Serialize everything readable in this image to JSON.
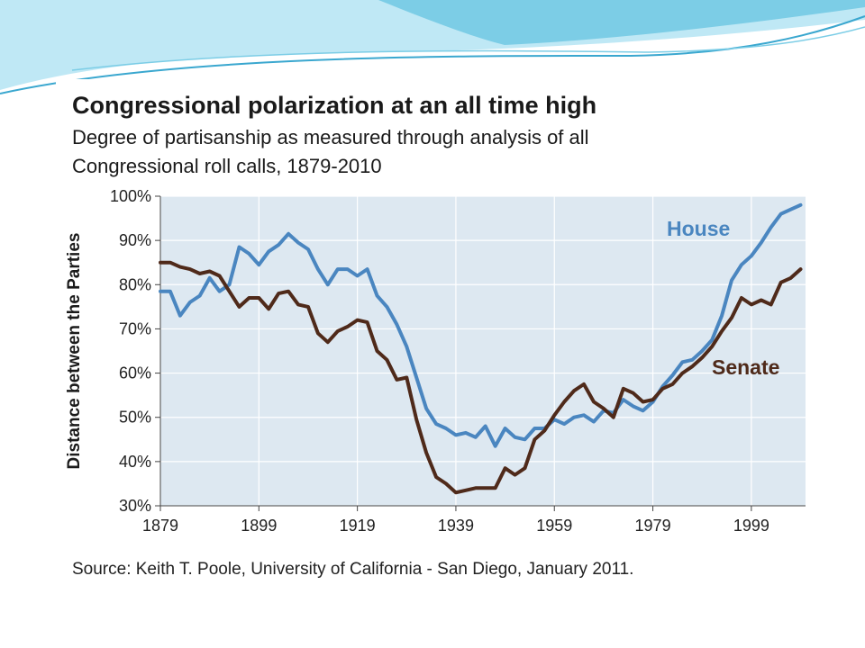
{
  "slide": {
    "colors": {
      "wave_light": "#bfe8f5",
      "wave_mid": "#7ccde6",
      "wave_dark": "#3aa7cf"
    }
  },
  "chart_data": {
    "type": "line",
    "title": "Congressional polarization at an all time high",
    "subtitle_line1": "Degree of partisanship as measured through analysis of all",
    "subtitle_line2": "Congressional roll calls, 1879-2010",
    "ylabel": "Distance between the Parties",
    "xlabel": "",
    "source": "Source: Keith T. Poole, University of California - San Diego, January 2011.",
    "xlim": [
      1879,
      2010
    ],
    "ylim": [
      30,
      100
    ],
    "x_ticks": [
      1879,
      1899,
      1919,
      1939,
      1959,
      1979,
      1999
    ],
    "x_tick_labels": [
      "1879",
      "1899",
      "1919",
      "1939",
      "1959",
      "1979",
      "1999"
    ],
    "y_ticks": [
      30,
      40,
      50,
      60,
      70,
      80,
      90,
      100
    ],
    "y_tick_labels": [
      "30%",
      "40%",
      "50%",
      "60%",
      "70%",
      "80%",
      "90%",
      "100%"
    ],
    "grid": true,
    "plot_background": "#dde8f1",
    "grid_color": "#ffffff",
    "series": [
      {
        "name": "House",
        "color": "#4a86c0",
        "points": [
          [
            1879,
            78.5
          ],
          [
            1881,
            78.5
          ],
          [
            1883,
            73
          ],
          [
            1885,
            76
          ],
          [
            1887,
            77.5
          ],
          [
            1889,
            81.5
          ],
          [
            1891,
            78.5
          ],
          [
            1893,
            80
          ],
          [
            1895,
            88.5
          ],
          [
            1897,
            87
          ],
          [
            1899,
            84.5
          ],
          [
            1901,
            87.5
          ],
          [
            1903,
            89
          ],
          [
            1905,
            91.5
          ],
          [
            1907,
            89.5
          ],
          [
            1909,
            88
          ],
          [
            1911,
            83.5
          ],
          [
            1913,
            80
          ],
          [
            1915,
            83.5
          ],
          [
            1917,
            83.5
          ],
          [
            1919,
            82
          ],
          [
            1921,
            83.5
          ],
          [
            1923,
            77.5
          ],
          [
            1925,
            75
          ],
          [
            1927,
            71
          ],
          [
            1929,
            66
          ],
          [
            1931,
            59
          ],
          [
            1933,
            52
          ],
          [
            1935,
            48.5
          ],
          [
            1937,
            47.5
          ],
          [
            1939,
            46
          ],
          [
            1941,
            46.5
          ],
          [
            1943,
            45.5
          ],
          [
            1945,
            48
          ],
          [
            1947,
            43.5
          ],
          [
            1949,
            47.5
          ],
          [
            1951,
            45.5
          ],
          [
            1953,
            45
          ],
          [
            1955,
            47.5
          ],
          [
            1957,
            47.5
          ],
          [
            1959,
            49.5
          ],
          [
            1961,
            48.5
          ],
          [
            1963,
            50
          ],
          [
            1965,
            50.5
          ],
          [
            1967,
            49
          ],
          [
            1969,
            51.5
          ],
          [
            1971,
            51
          ],
          [
            1973,
            54
          ],
          [
            1975,
            52.5
          ],
          [
            1977,
            51.5
          ],
          [
            1979,
            53.5
          ],
          [
            1981,
            57
          ],
          [
            1983,
            59.5
          ],
          [
            1985,
            62.5
          ],
          [
            1987,
            63
          ],
          [
            1989,
            65
          ],
          [
            1991,
            67.5
          ],
          [
            1993,
            73
          ],
          [
            1995,
            81
          ],
          [
            1997,
            84.5
          ],
          [
            1999,
            86.5
          ],
          [
            2001,
            89.5
          ],
          [
            2003,
            93
          ],
          [
            2005,
            96
          ],
          [
            2007,
            97
          ],
          [
            2009,
            98
          ]
        ]
      },
      {
        "name": "Senate",
        "color": "#4f2a1a",
        "points": [
          [
            1879,
            85
          ],
          [
            1881,
            85
          ],
          [
            1883,
            84
          ],
          [
            1885,
            83.5
          ],
          [
            1887,
            82.5
          ],
          [
            1889,
            83
          ],
          [
            1891,
            82
          ],
          [
            1893,
            78.5
          ],
          [
            1895,
            75
          ],
          [
            1897,
            77
          ],
          [
            1899,
            77
          ],
          [
            1901,
            74.5
          ],
          [
            1903,
            78
          ],
          [
            1905,
            78.5
          ],
          [
            1907,
            75.5
          ],
          [
            1909,
            75
          ],
          [
            1911,
            69
          ],
          [
            1913,
            67
          ],
          [
            1915,
            69.5
          ],
          [
            1917,
            70.5
          ],
          [
            1919,
            72
          ],
          [
            1921,
            71.5
          ],
          [
            1923,
            65
          ],
          [
            1925,
            63
          ],
          [
            1927,
            58.5
          ],
          [
            1929,
            59
          ],
          [
            1931,
            49.5
          ],
          [
            1933,
            42
          ],
          [
            1935,
            36.5
          ],
          [
            1937,
            35
          ],
          [
            1939,
            33
          ],
          [
            1941,
            33.5
          ],
          [
            1943,
            34
          ],
          [
            1945,
            34
          ],
          [
            1947,
            34
          ],
          [
            1949,
            38.5
          ],
          [
            1951,
            37
          ],
          [
            1953,
            38.5
          ],
          [
            1955,
            45
          ],
          [
            1957,
            47
          ],
          [
            1959,
            50.5
          ],
          [
            1961,
            53.5
          ],
          [
            1963,
            56
          ],
          [
            1965,
            57.5
          ],
          [
            1967,
            53.5
          ],
          [
            1969,
            52
          ],
          [
            1971,
            50
          ],
          [
            1973,
            56.5
          ],
          [
            1975,
            55.5
          ],
          [
            1977,
            53.5
          ],
          [
            1979,
            54
          ],
          [
            1981,
            56.5
          ],
          [
            1983,
            57.5
          ],
          [
            1985,
            60
          ],
          [
            1987,
            61.5
          ],
          [
            1989,
            63.5
          ],
          [
            1991,
            66
          ],
          [
            1993,
            69.5
          ],
          [
            1995,
            72.5
          ],
          [
            1997,
            77
          ],
          [
            1999,
            75.5
          ],
          [
            2001,
            76.5
          ],
          [
            2003,
            75.5
          ],
          [
            2005,
            80.5
          ],
          [
            2007,
            81.5
          ],
          [
            2009,
            83.5
          ]
        ]
      }
    ],
    "series_labels": [
      {
        "text": "House",
        "series": 0
      },
      {
        "text": "Senate",
        "series": 1
      }
    ]
  }
}
